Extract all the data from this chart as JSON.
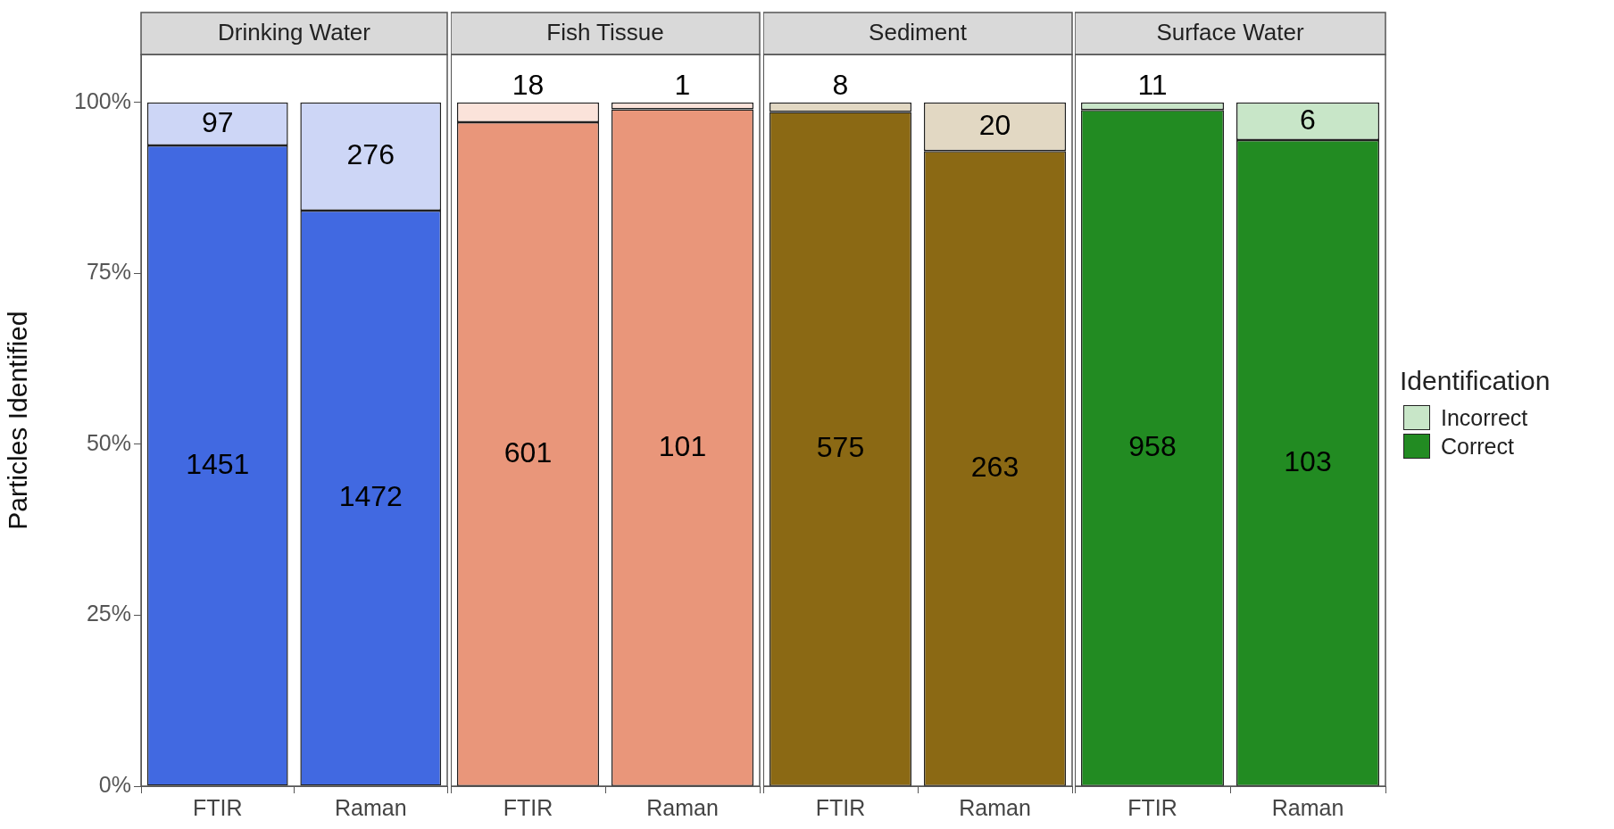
{
  "chart_data": [
    {
      "type": "bar",
      "title": "Drinking Water",
      "ylabel": "Particles Identified",
      "categories": [
        "FTIR",
        "Raman"
      ],
      "stacked": true,
      "ylim": [
        0,
        107
      ],
      "yticks": [
        {
          "value": 0,
          "label": "0%"
        },
        {
          "value": 25,
          "label": "25%"
        },
        {
          "value": 50,
          "label": "50%"
        },
        {
          "value": 75,
          "label": "75%"
        },
        {
          "value": 100,
          "label": "100%"
        }
      ],
      "grid": false,
      "legend": false,
      "series": [
        {
          "color": "#4169e1",
          "values": [
            93.7,
            84.2
          ]
        },
        {
          "color": "#cdd6f6",
          "values": [
            6.3,
            15.8
          ]
        }
      ],
      "annotations": [
        "1451",
        "1472",
        "97",
        "276"
      ]
    },
    {
      "type": "bar",
      "title": "Fish Tissue",
      "categories": [
        "FTIR",
        "Raman"
      ],
      "stacked": true,
      "ylim": [
        0,
        107
      ],
      "tick_labels": "x",
      "grid": false,
      "legend": false,
      "series": [
        {
          "color": "#e9967a",
          "values": [
            97.1,
            99.0
          ]
        },
        {
          "color": "#fbe3da",
          "values": [
            2.9,
            1.0
          ]
        }
      ],
      "annotations": [
        "601",
        "101",
        "18",
        "1"
      ]
    },
    {
      "type": "bar",
      "title": "Sediment",
      "categories": [
        "FTIR",
        "Raman"
      ],
      "stacked": true,
      "ylim": [
        0,
        107
      ],
      "tick_labels": "x",
      "grid": false,
      "legend": false,
      "series": [
        {
          "color": "#8b6914",
          "values": [
            98.6,
            92.9
          ]
        },
        {
          "color": "#e2d8c3",
          "values": [
            1.4,
            7.1
          ]
        }
      ],
      "annotations": [
        "575",
        "263",
        "8",
        "20"
      ]
    },
    {
      "type": "bar",
      "title": "Surface Water",
      "categories": [
        "FTIR",
        "Raman"
      ],
      "stacked": true,
      "ylim": [
        0,
        107
      ],
      "tick_labels": "x",
      "grid": false,
      "legend": "right",
      "legend_title": "Identification",
      "series": [
        {
          "name": "Correct",
          "color": "#228b22",
          "values": [
            98.9,
            94.5
          ]
        },
        {
          "name": "Incorrect",
          "color": "#c8e6c8",
          "values": [
            1.1,
            5.5
          ]
        }
      ],
      "annotations": [
        "958",
        "103",
        "11",
        "6"
      ]
    }
  ]
}
